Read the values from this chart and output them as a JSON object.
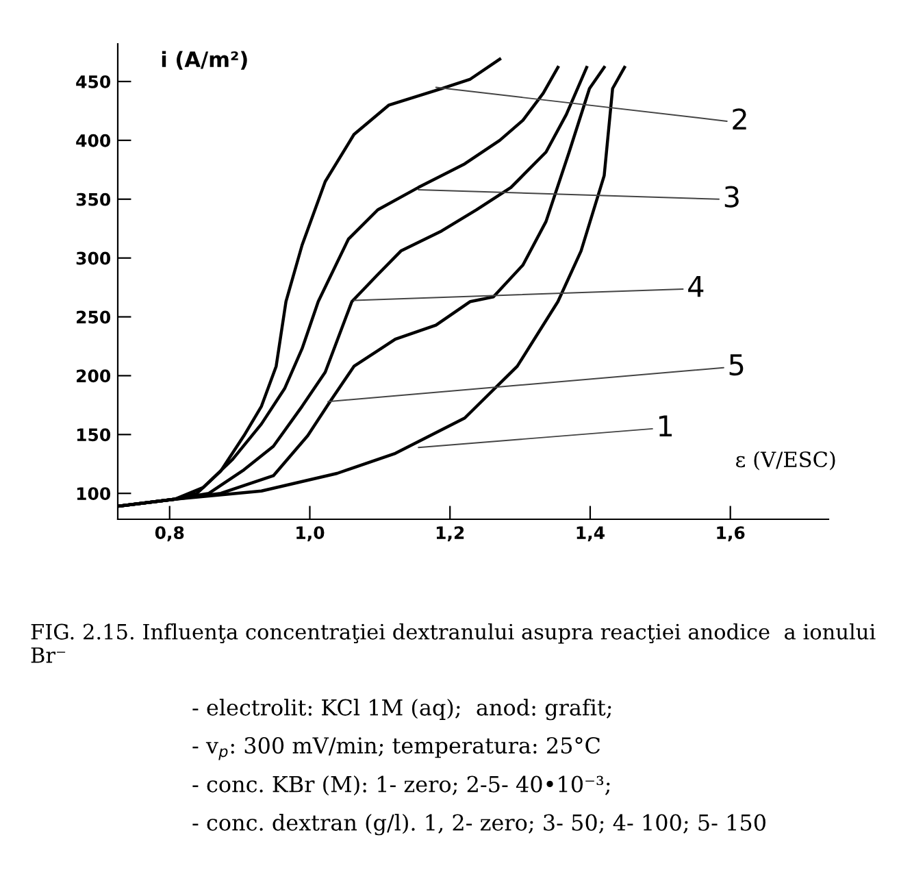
{
  "chart_data": {
    "type": "line",
    "title": "FIG. 2.15. Influenţa concentraţiei dextranului asupra reacţiei anodice  a ionului Br⁻",
    "xlabel": "ε (V/ESC)",
    "ylabel": "i (A/m²)",
    "xlim": [
      0.726,
      1.74
    ],
    "ylim": [
      78,
      482
    ],
    "xticks": [
      {
        "value": 0.8,
        "label": "0,8"
      },
      {
        "value": 1.0,
        "label": "1,0"
      },
      {
        "value": 1.2,
        "label": "1,2"
      },
      {
        "value": 1.4,
        "label": "1,4"
      },
      {
        "value": 1.6,
        "label": "1,6"
      }
    ],
    "yticks": [
      100,
      150,
      200,
      250,
      300,
      350,
      400,
      450
    ],
    "marker": "none",
    "line_style": "solid",
    "series": [
      {
        "color": "#000000",
        "x": [
          0.726,
          0.807,
          0.931,
          1.039,
          1.122,
          1.221,
          1.296,
          1.354,
          1.387,
          1.42,
          1.432,
          1.449
        ],
        "values": [
          89,
          95,
          102,
          117,
          134,
          164,
          208,
          263,
          306,
          370,
          444,
          462
        ]
      },
      {
        "color": "#000000",
        "x": [
          0.726,
          0.807,
          0.839,
          0.873,
          0.906,
          0.931,
          0.952,
          0.966,
          0.989,
          1.022,
          1.063,
          1.113,
          1.188,
          1.229,
          1.271
        ],
        "values": [
          89,
          95,
          100,
          119,
          149,
          174,
          208,
          263,
          311,
          365,
          405,
          430,
          444,
          452,
          469
        ]
      },
      {
        "color": "#000000",
        "x": [
          0.726,
          0.807,
          0.848,
          0.89,
          0.931,
          0.964,
          0.989,
          1.012,
          1.055,
          1.097,
          1.155,
          1.221,
          1.271,
          1.304,
          1.333,
          1.354
        ],
        "values": [
          89,
          95,
          105,
          129,
          159,
          189,
          223,
          263,
          316,
          341,
          360,
          380,
          400,
          417,
          440,
          462
        ]
      },
      {
        "color": "#000000",
        "x": [
          0.726,
          0.807,
          0.856,
          0.906,
          0.948,
          0.989,
          1.022,
          1.06,
          1.097,
          1.13,
          1.188,
          1.238,
          1.287,
          1.337,
          1.366,
          1.395
        ],
        "values": [
          89,
          95,
          100,
          120,
          140,
          174,
          203,
          263,
          286,
          306,
          323,
          341,
          360,
          390,
          422,
          462
        ]
      },
      {
        "color": "#000000",
        "x": [
          0.726,
          0.807,
          0.873,
          0.948,
          0.997,
          1.03,
          1.063,
          1.122,
          1.18,
          1.229,
          1.262,
          1.304,
          1.337,
          1.37,
          1.399,
          1.42
        ],
        "values": [
          89,
          95,
          100,
          115,
          149,
          179,
          208,
          231,
          243,
          263,
          267,
          294,
          331,
          390,
          444,
          462
        ]
      }
    ],
    "annotations": [
      {
        "text": "2",
        "x": 1.18,
        "y": 445
      },
      {
        "text": "3",
        "x": 1.155,
        "y": 358
      },
      {
        "text": "4",
        "x": 1.063,
        "y": 264
      },
      {
        "text": "5",
        "x": 1.026,
        "y": 178
      },
      {
        "text": "1",
        "x": 1.155,
        "y": 139
      },
      "- electrolit: KCl 1M (aq);  anod: grafit;",
      "- v$_{p}$: 300 mV/min; temperatura: 25°C",
      "- conc. KBr (M): 1- zero; 2-5- 40•10⁻³;",
      "- conc. dextran (g/l). 1, 2- zero; 3- 50; 4- 100; 5- 150"
    ]
  }
}
